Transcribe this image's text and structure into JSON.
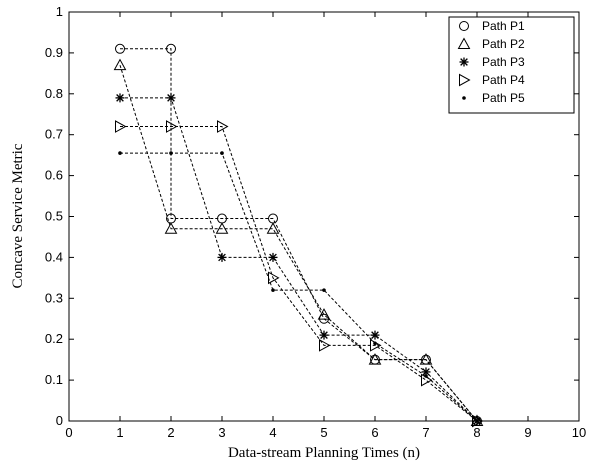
{
  "chart_data": {
    "type": "line",
    "title": "",
    "xlabel": "Data-stream Planning Times (n)",
    "ylabel": "Concave Service Metric",
    "xlim": [
      0,
      10
    ],
    "ylim": [
      0,
      1
    ],
    "xticks": [
      0,
      1,
      2,
      3,
      4,
      5,
      6,
      7,
      8,
      9,
      10
    ],
    "yticks": [
      0,
      0.1,
      0.2,
      0.3,
      0.4,
      0.5,
      0.6,
      0.7,
      0.8,
      0.9,
      1
    ],
    "xtick_labels": [
      "0",
      "1",
      "2",
      "3",
      "4",
      "5",
      "6",
      "7",
      "8",
      "9",
      "10"
    ],
    "ytick_labels": [
      "0",
      "0.1",
      "0.2",
      "0.3",
      "0.4",
      "0.5",
      "0.6",
      "0.7",
      "0.8",
      "0.9",
      "1"
    ],
    "grid": false,
    "legend": "top-right",
    "series": [
      {
        "name": "Path P1",
        "marker": "circle",
        "points": [
          [
            1,
            0.91
          ],
          [
            2,
            0.91
          ],
          [
            2,
            0.495
          ],
          [
            3,
            0.495
          ],
          [
            4,
            0.495
          ],
          [
            5,
            0.25
          ],
          [
            6,
            0.15
          ],
          [
            7,
            0.15
          ],
          [
            8,
            0.0
          ]
        ]
      },
      {
        "name": "Path P2",
        "marker": "triangle-up",
        "points": [
          [
            1,
            0.87
          ],
          [
            2,
            0.47
          ],
          [
            3,
            0.47
          ],
          [
            4,
            0.47
          ],
          [
            5,
            0.26
          ],
          [
            6,
            0.15
          ],
          [
            7,
            0.15
          ],
          [
            8,
            0.0
          ]
        ]
      },
      {
        "name": "Path P3",
        "marker": "star",
        "points": [
          [
            1,
            0.79
          ],
          [
            2,
            0.79
          ],
          [
            3,
            0.4
          ],
          [
            4,
            0.4
          ],
          [
            5,
            0.21
          ],
          [
            6,
            0.21
          ],
          [
            7,
            0.12
          ],
          [
            8,
            0.0
          ]
        ]
      },
      {
        "name": "Path P4",
        "marker": "triangle-right",
        "points": [
          [
            1,
            0.72
          ],
          [
            2,
            0.72
          ],
          [
            3,
            0.72
          ],
          [
            4,
            0.35
          ],
          [
            5,
            0.185
          ],
          [
            6,
            0.185
          ],
          [
            7,
            0.1
          ],
          [
            8,
            0.0
          ]
        ]
      },
      {
        "name": "Path P5",
        "marker": "dot",
        "points": [
          [
            1,
            0.655
          ],
          [
            2,
            0.655
          ],
          [
            3,
            0.655
          ],
          [
            4,
            0.32
          ],
          [
            5,
            0.32
          ],
          [
            6,
            0.19
          ],
          [
            7,
            0.11
          ],
          [
            8,
            0.0
          ]
        ]
      }
    ]
  }
}
